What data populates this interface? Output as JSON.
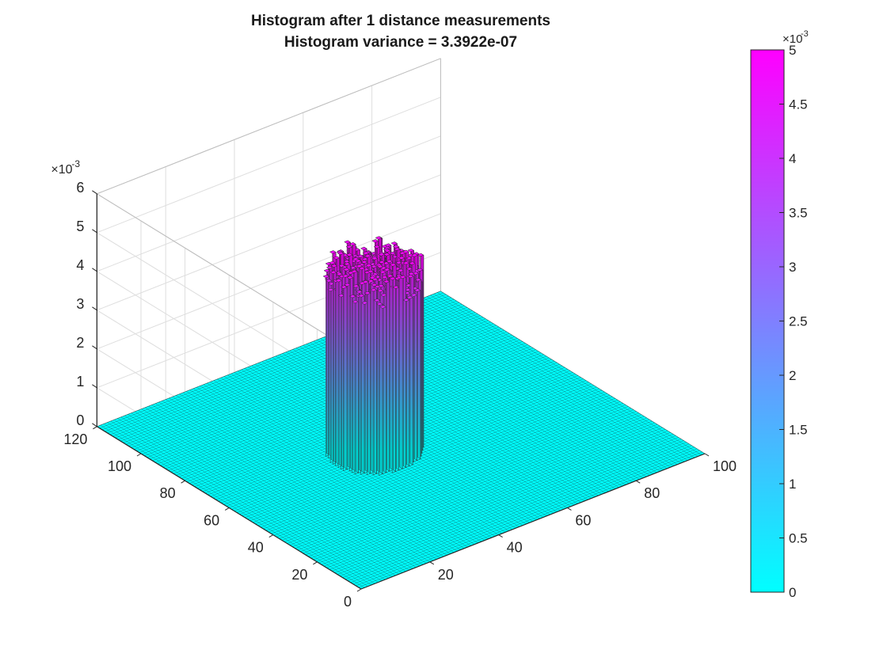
{
  "chart_data": {
    "type": "bar3",
    "title": "Histogram after 1  distance measurements",
    "subtitle": "Histogram variance = 3.3922e-07",
    "z_exponent_label": "×10",
    "z_exponent": "-3",
    "x_ticks": [
      "20",
      "40",
      "60",
      "80",
      "100"
    ],
    "x_tick_values": [
      20,
      40,
      60,
      80,
      100
    ],
    "y_ticks": [
      "0",
      "20",
      "40",
      "60",
      "80",
      "100",
      "120"
    ],
    "y_tick_values": [
      0,
      20,
      40,
      60,
      80,
      100,
      120
    ],
    "z_ticks": [
      "0",
      "1",
      "2",
      "3",
      "4",
      "5",
      "6"
    ],
    "z_tick_values": [
      0,
      1,
      2,
      3,
      4,
      5,
      6
    ],
    "xlim": [
      0,
      100
    ],
    "ylim": [
      0,
      120
    ],
    "zlim": [
      0,
      6
    ],
    "grid": true,
    "grid_size": [
      100,
      100
    ],
    "support_region": {
      "center_x": 42,
      "center_y": 60,
      "radius": 11,
      "shape": "disk"
    },
    "uniform_value_in_region": 5.0,
    "background_value": 0,
    "colormap": {
      "name": "cool",
      "low": "#00ffff",
      "high": "#ff00ff"
    },
    "colorbar": {
      "ticks": [
        "0",
        "0.5",
        "1",
        "1.5",
        "2",
        "2.5",
        "3",
        "3.5",
        "4",
        "4.5",
        "5"
      ],
      "tick_values": [
        0,
        0.5,
        1,
        1.5,
        2,
        2.5,
        3,
        3.5,
        4,
        4.5,
        5
      ],
      "range": [
        0,
        5
      ],
      "exponent_label": "×10",
      "exponent": "-3"
    }
  }
}
